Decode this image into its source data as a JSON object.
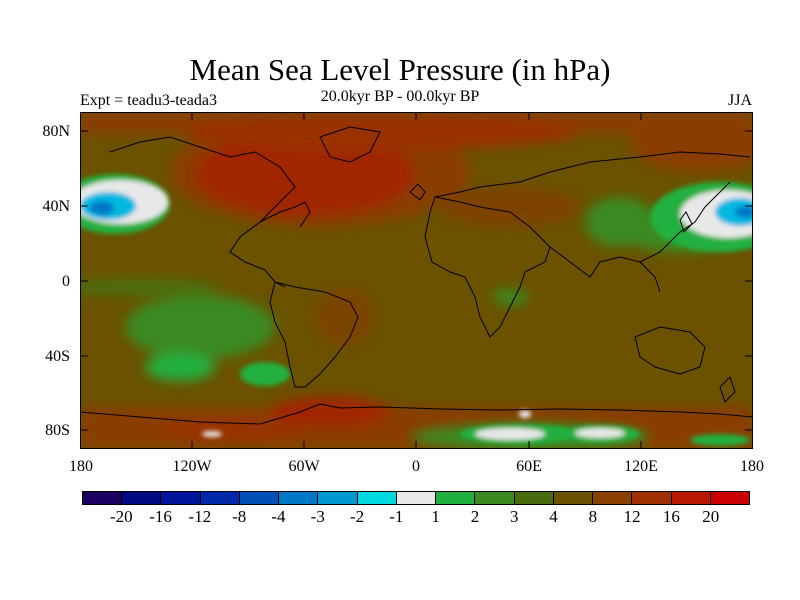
{
  "title": "Mean Sea Level Pressure (in hPa)",
  "subtitle_left": "Expt = teadu3-teada3",
  "subtitle_center": "20.0kyr BP - 00.0kyr BP",
  "subtitle_right": "JJA",
  "lat_labels": [
    "80N",
    "40N",
    "0",
    "40S",
    "80S"
  ],
  "lon_labels": [
    "180",
    "120W",
    "60W",
    "0",
    "60E",
    "120E",
    "180"
  ],
  "colorbar": {
    "colors": [
      "#1a0060",
      "#000a80",
      "#00159a",
      "#0028a8",
      "#0050b8",
      "#0078c8",
      "#0098d0",
      "#00d8e0",
      "#e8e8e8",
      "#20b040",
      "#3a8a20",
      "#4a6a10",
      "#6a5000",
      "#8a4000",
      "#a03000",
      "#b81800",
      "#cc0000"
    ],
    "labels": [
      "-20",
      "-16",
      "-12",
      "-8",
      "-4",
      "-3",
      "-2",
      "-1",
      "1",
      "2",
      "3",
      "4",
      "8",
      "12",
      "16",
      "20"
    ]
  },
  "map_colors": {
    "background": "#6a5200",
    "light_red": "#8a3c00",
    "red": "#a02800",
    "green": "#3a8a20",
    "bright_green": "#20b040",
    "white": "#e8e8e8",
    "cyan": "#00b8e0",
    "blue": "#0078c8"
  }
}
